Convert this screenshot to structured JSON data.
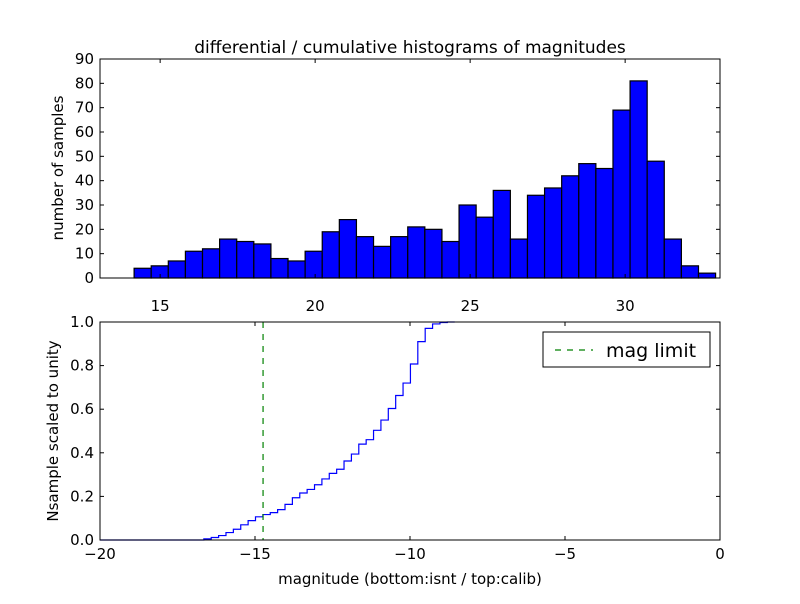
{
  "chart_data": [
    {
      "type": "bar",
      "title": "differential / cumulative histograms of magnitudes",
      "xlabel": "",
      "ylabel": "number of samples",
      "xlim": [
        13.06,
        33.06
      ],
      "ylim": [
        0,
        90
      ],
      "xticks": [
        15,
        20,
        25,
        30
      ],
      "yticks": [
        0,
        10,
        20,
        30,
        40,
        50,
        60,
        70,
        80,
        90
      ],
      "bin_start": 14.16,
      "bin_width": 0.5517,
      "values": [
        4,
        5,
        7,
        11,
        12,
        16,
        15,
        14,
        8,
        7,
        11,
        19,
        24,
        17,
        13,
        17,
        21,
        20,
        15,
        30,
        25,
        36,
        16,
        34,
        37,
        42,
        47,
        45,
        69,
        81,
        48,
        16,
        5,
        2
      ],
      "color": "#0000ff"
    },
    {
      "type": "line",
      "subtype": "cumulative-step",
      "xlabel": "magnitude (bottom:isnt / top:calib)",
      "ylabel": "Nsample scaled to unity",
      "xlim": [
        -20,
        0
      ],
      "ylim": [
        0,
        1
      ],
      "xticks": [
        -20,
        -15,
        -10,
        -5,
        0
      ],
      "ytick_labels": [
        "0.0",
        "0.2",
        "0.4",
        "0.6",
        "0.8",
        "1.0"
      ],
      "bin_start": -16.65,
      "bin_width": 0.238,
      "color": "#0000ff",
      "mag_limit": -14.74,
      "mag_limit_color": "#008000",
      "legend": {
        "label": "mag limit",
        "placement": "top-right"
      }
    }
  ]
}
